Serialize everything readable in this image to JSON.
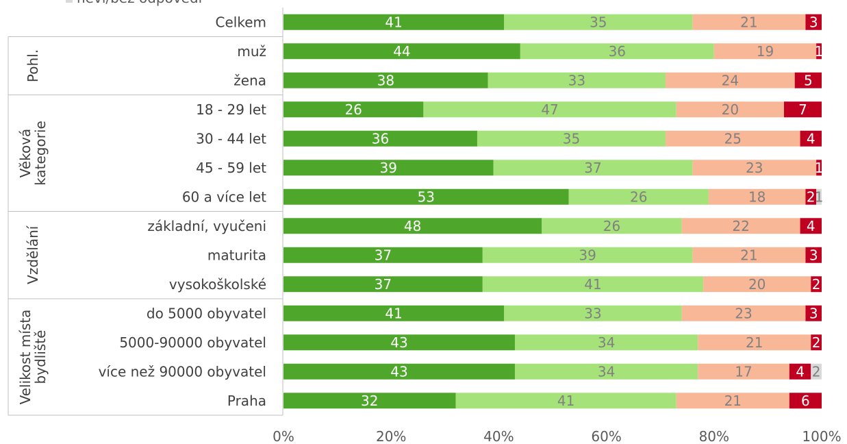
{
  "colors": {
    "s1": "#4ea72a",
    "s2": "#a6e27a",
    "s3": "#f8b897",
    "s4": "#c00020",
    "s5": "#d9d9d9",
    "label_on_dark": "#ffffff",
    "label_on_light": "#808080",
    "label_neutral": "#808080"
  },
  "chart_data": {
    "type": "bar",
    "orientation": "horizontal",
    "stacked": "100%",
    "xlim": [
      0,
      100
    ],
    "x_ticks": [
      "0%",
      "20%",
      "40%",
      "60%",
      "80%",
      "100%"
    ],
    "legend": {
      "placement": "top-left",
      "visible_entries": [
        "neví/bez odpovědi"
      ]
    },
    "groups": [
      {
        "label": "",
        "rows": [
          0
        ]
      },
      {
        "label": "Pohl.",
        "rows": [
          1,
          2
        ]
      },
      {
        "label": "Věková kategorie",
        "rows": [
          3,
          4,
          5,
          6
        ]
      },
      {
        "label": "Vzdělání",
        "rows": [
          7,
          8,
          9
        ]
      },
      {
        "label": "Velikost místa bydliště",
        "rows": [
          10,
          11,
          12,
          13
        ]
      }
    ],
    "categories": [
      "Celkem",
      "muž",
      "žena",
      "18 - 29 let",
      "30 - 44 let",
      "45 - 59 let",
      "60 a více let",
      "základní, vyučeni",
      "maturita",
      "vysokoškolské",
      "do 5000 obyvatel",
      "5000-90000 obyvatel",
      "více než 90000 obyvatel",
      "Praha"
    ],
    "series": [
      {
        "name": "",
        "color_key": "s1",
        "values": [
          41,
          44,
          38,
          26,
          36,
          39,
          53,
          48,
          37,
          37,
          41,
          43,
          43,
          32
        ]
      },
      {
        "name": "",
        "color_key": "s2",
        "values": [
          35,
          36,
          33,
          47,
          35,
          37,
          26,
          26,
          39,
          41,
          33,
          34,
          34,
          41
        ]
      },
      {
        "name": "",
        "color_key": "s3",
        "values": [
          21,
          19,
          24,
          20,
          25,
          23,
          18,
          22,
          21,
          20,
          23,
          21,
          17,
          21
        ]
      },
      {
        "name": "",
        "color_key": "s4",
        "values": [
          3,
          1,
          5,
          7,
          4,
          1,
          2,
          4,
          3,
          2,
          3,
          2,
          4,
          6
        ]
      },
      {
        "name": "neví/bez odpovědi",
        "color_key": "s5",
        "values": [
          0,
          0,
          0,
          0,
          0,
          0,
          1,
          0,
          0,
          0,
          0,
          0,
          2,
          0
        ]
      }
    ]
  }
}
